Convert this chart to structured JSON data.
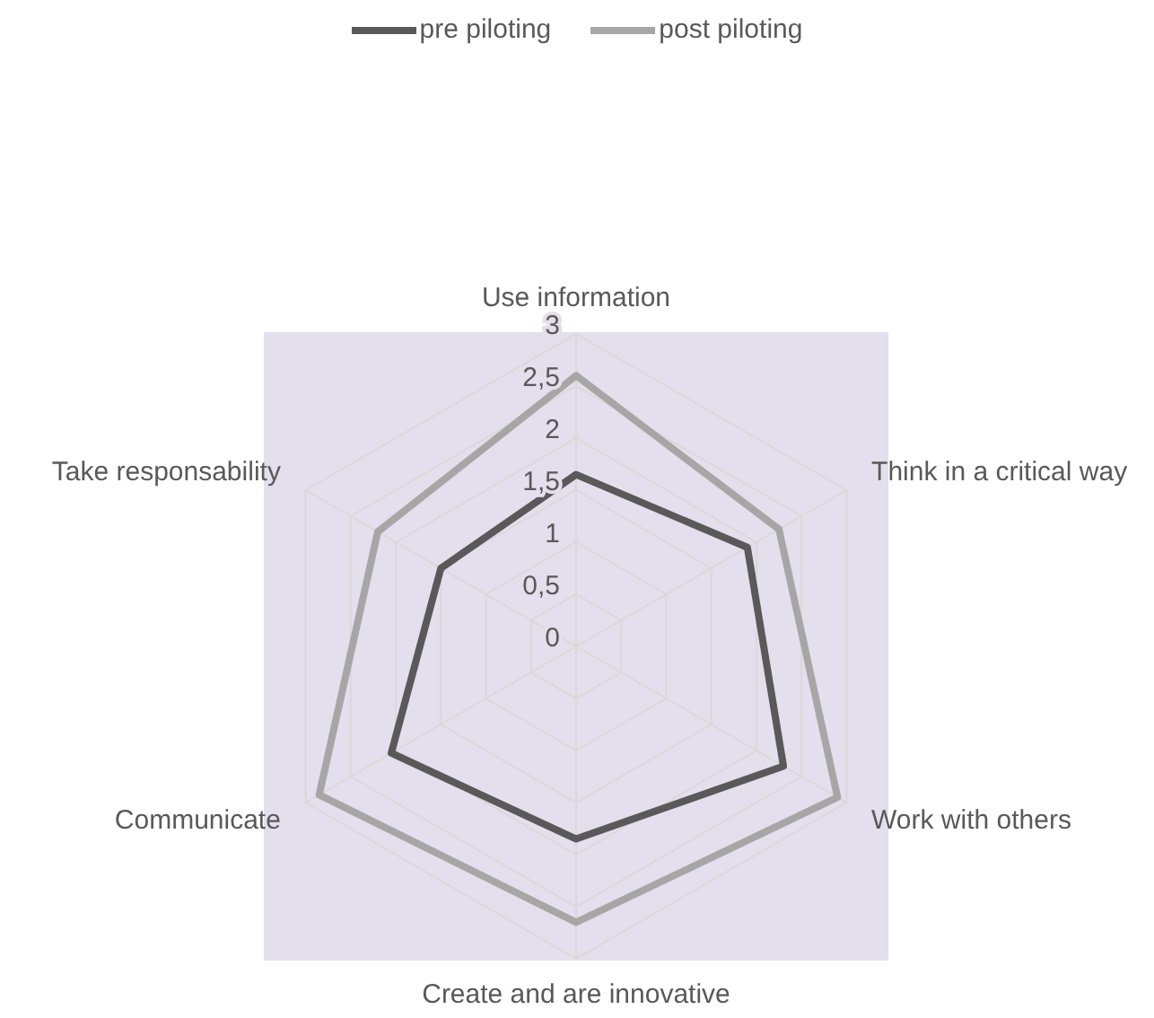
{
  "chart_data": {
    "type": "radar",
    "categories": [
      "Use information",
      "Think in a critical way",
      "Work with others",
      "Create and are innovative",
      "Communicate",
      "Take responsability"
    ],
    "series": [
      {
        "name": "pre piloting",
        "color": "#595959",
        "values": [
          1.65,
          1.9,
          2.3,
          1.85,
          2.05,
          1.5
        ]
      },
      {
        "name": "post  piloting",
        "color": "#a6a6a6",
        "values": [
          2.6,
          2.25,
          2.9,
          2.65,
          2.85,
          2.2
        ]
      }
    ],
    "ylim": [
      0,
      3
    ],
    "yticks": [
      0,
      {
        "value": 0.5,
        "label": "0,5"
      },
      1,
      {
        "value": 1.5,
        "label": "1,5"
      },
      2,
      {
        "value": 2.5,
        "label": "2,5"
      },
      3
    ],
    "grid": true,
    "legend": "top"
  }
}
